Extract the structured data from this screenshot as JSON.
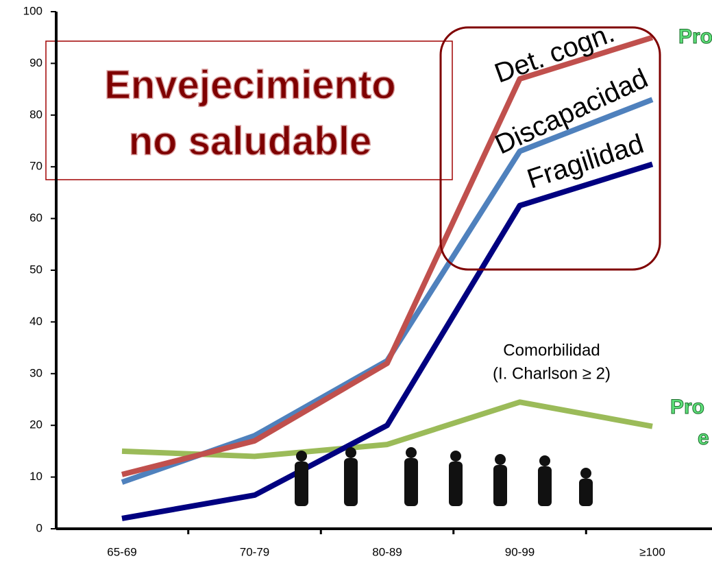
{
  "chart_data": {
    "type": "line",
    "title_lines": [
      "Envejecimiento",
      "no saludable"
    ],
    "categories": [
      "65-69",
      "70-79",
      "80-89",
      "90-99",
      "≥100"
    ],
    "series": [
      {
        "name": "Det. cogn.",
        "color": "#c0504d",
        "values": [
          10.5,
          17,
          32,
          87,
          95
        ]
      },
      {
        "name": "Discapacidad",
        "color": "#4f81bd",
        "values": [
          9,
          18,
          32.5,
          73,
          83
        ]
      },
      {
        "name": "Fragilidad",
        "color": "#000080",
        "values": [
          2,
          6.5,
          20,
          62.5,
          70.5
        ]
      },
      {
        "name": "Comorbilidad",
        "color": "#9bbb59",
        "values": [
          15,
          14,
          16.3,
          24.5,
          19.8
        ]
      }
    ],
    "annotations": [
      "(I. Charlson ≥ 2)",
      "Pro",
      "Pro",
      "e"
    ],
    "ylim": [
      0,
      100
    ],
    "yticks": [
      0,
      10,
      20,
      30,
      40,
      50,
      60,
      70,
      80,
      90,
      100
    ],
    "grid": false
  }
}
